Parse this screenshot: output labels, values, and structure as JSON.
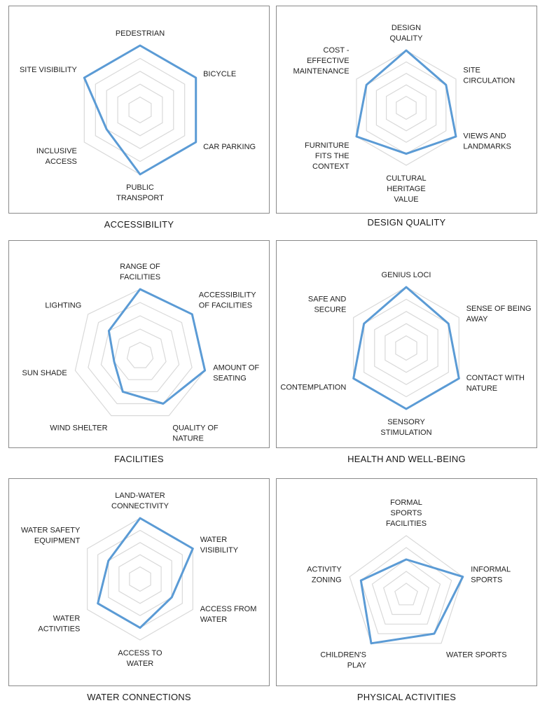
{
  "colors": {
    "series": "#5b9bd5",
    "grid": "#d9d9d9",
    "frame": "#8a8a8a"
  },
  "chart_data": [
    {
      "type": "radar",
      "title": "ACCESSIBILITY",
      "axes": [
        [
          "PEDESTRIAN"
        ],
        [
          "BICYCLE"
        ],
        [
          "CAR PARKING"
        ],
        [
          "PUBLIC",
          "TRANSPORT"
        ],
        [
          "INCLUSIVE",
          "ACCESS"
        ],
        [
          "SITE VISIBILITY"
        ]
      ],
      "values": [
        5,
        5,
        5,
        5,
        3,
        5
      ],
      "max": 5,
      "levels": 5
    },
    {
      "type": "radar",
      "title": "DESIGN QUALITY",
      "axes": [
        [
          "DESIGN",
          "QUALITY"
        ],
        [
          "SITE",
          "CIRCULATION"
        ],
        [
          "VIEWS AND",
          "LANDMARKS"
        ],
        [
          "CULTURAL",
          "HERITAGE",
          "VALUE"
        ],
        [
          "FURNITURE",
          "FITS THE",
          "CONTEXT"
        ],
        [
          "COST -",
          "EFFECTIVE",
          "MAINTENANCE"
        ]
      ],
      "values": [
        5,
        4,
        5,
        4,
        5,
        4
      ],
      "max": 5,
      "levels": 5
    },
    {
      "type": "radar",
      "title": "FACILITIES",
      "axes": [
        [
          "RANGE OF",
          "FACILITIES"
        ],
        [
          "ACCESSIBILITY",
          "OF FACILITIES"
        ],
        [
          "AMOUNT OF",
          "SEATING"
        ],
        [
          "QUALITY OF",
          "NATURE"
        ],
        [
          "WIND SHELTER"
        ],
        [
          "SUN SHADE"
        ],
        [
          "LIGHTING"
        ]
      ],
      "values": [
        5,
        5,
        5,
        4,
        3,
        2,
        3
      ],
      "max": 5,
      "levels": 5
    },
    {
      "type": "radar",
      "title": "HEALTH AND WELL-BEING",
      "axes": [
        [
          "GENIUS LOCI"
        ],
        [
          "SENSE OF BEING",
          "AWAY"
        ],
        [
          "CONTACT WITH",
          "NATURE"
        ],
        [
          "SENSORY",
          "STIMULATION"
        ],
        [
          "CONTEMPLATION"
        ],
        [
          "SAFE AND",
          "SECURE"
        ]
      ],
      "values": [
        5,
        4,
        5,
        5,
        5,
        4
      ],
      "max": 5,
      "levels": 5
    },
    {
      "type": "radar",
      "title": "WATER CONNECTIONS",
      "axes": [
        [
          "LAND-WATER",
          "CONNECTIVITY"
        ],
        [
          "WATER",
          "VISIBILITY"
        ],
        [
          "ACCESS FROM",
          "WATER"
        ],
        [
          "ACCESS TO",
          "WATER"
        ],
        [
          "WATER",
          "ACTIVITIES"
        ],
        [
          "WATER SAFETY",
          "EQUIPMENT"
        ]
      ],
      "values": [
        5,
        5,
        3,
        4,
        4,
        3
      ],
      "max": 5,
      "levels": 5
    },
    {
      "type": "radar",
      "title": "PHYSICAL ACTIVITIES",
      "axes": [
        [
          "FORMAL",
          "SPORTS",
          "FACILITIES"
        ],
        [
          "INFORMAL",
          "SPORTS"
        ],
        [
          "WATER SPORTS"
        ],
        [
          "CHILDREN'S",
          "PLAY"
        ],
        [
          "ACTIVITY",
          "ZONING"
        ]
      ],
      "values": [
        3,
        5,
        4,
        5,
        4
      ],
      "max": 5,
      "levels": 5
    }
  ]
}
